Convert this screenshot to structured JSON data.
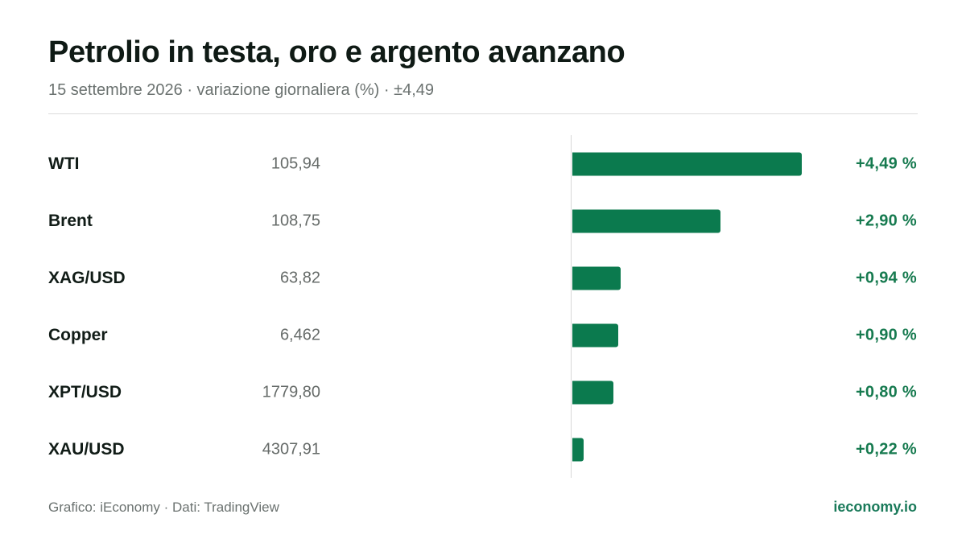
{
  "header": {
    "title": "Petrolio in testa, oro e argento avanzano",
    "subtitle": "15 settembre 2026 · variazione giornaliera (%) · ±4,49"
  },
  "footer": {
    "source": "Grafico: iEconomy · Dati: TradingView",
    "brand": "ieconomy.io"
  },
  "colors": {
    "bar": "#0b7a4e",
    "positive_text": "#167a4f",
    "brand": "#1a7a5a"
  },
  "chart_data": {
    "type": "bar",
    "orientation": "horizontal",
    "title": "Petrolio in testa, oro e argento avanzano",
    "subtitle": "15 settembre 2026 · variazione giornaliera (%) · ±4,49",
    "xlim": [
      0,
      4.49
    ],
    "grid": false,
    "legend": "none",
    "categories": [
      "WTI",
      "Brent",
      "XAG/USD",
      "Copper",
      "XPT/USD",
      "XAU/USD"
    ],
    "prices": [
      "105,94",
      "108,75",
      "63,82",
      "6,462",
      "1779,80",
      "4307,91"
    ],
    "values": [
      4.49,
      2.9,
      0.94,
      0.9,
      0.8,
      0.22
    ],
    "value_labels": [
      "+4,49 %",
      "+2,90 %",
      "+0,94 %",
      "+0,90 %",
      "+0,80 %",
      "+0,22 %"
    ]
  }
}
